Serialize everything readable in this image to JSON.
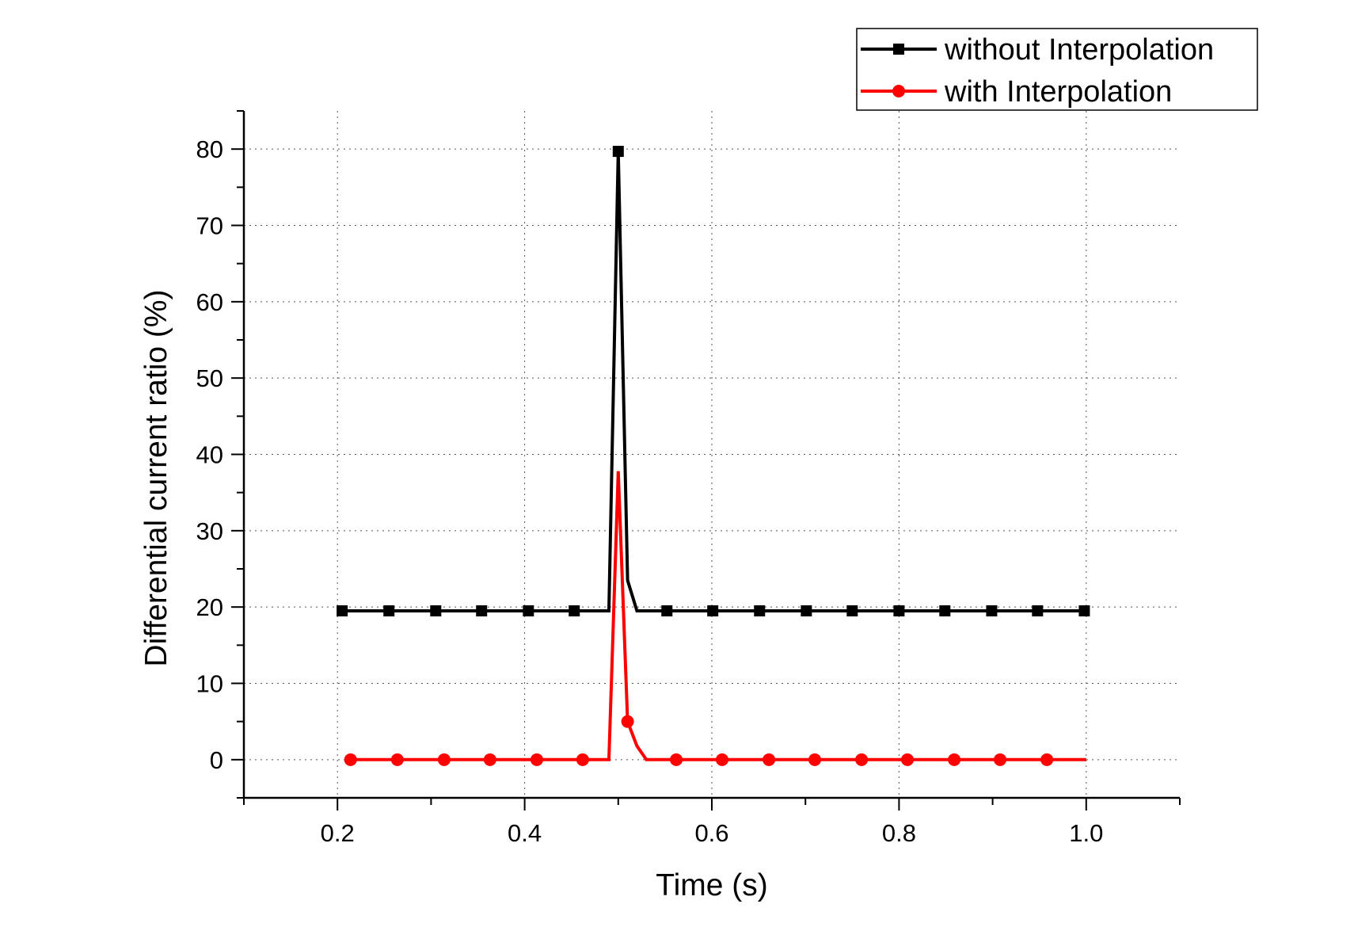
{
  "chart_data": {
    "type": "line",
    "title": "",
    "xlabel": "Time (s)",
    "ylabel": "Differential  current ratio (%)",
    "xlim": [
      0.1,
      1.1
    ],
    "ylim": [
      -5,
      85
    ],
    "x_ticks": [
      0.2,
      0.4,
      0.6,
      0.8,
      1.0
    ],
    "x_tick_labels": [
      "0.2",
      "0.4",
      "0.6",
      "0.8",
      "1.0"
    ],
    "y_ticks": [
      0,
      10,
      20,
      30,
      40,
      50,
      60,
      70,
      80
    ],
    "y_tick_labels": [
      "0",
      "10",
      "20",
      "30",
      "40",
      "50",
      "60",
      "70",
      "80"
    ],
    "grid": true,
    "legend_position": "top-right",
    "series": [
      {
        "name": "without Interpolation",
        "color": "#000000",
        "marker": "square",
        "line": [
          [
            0.205,
            19.5
          ],
          [
            0.49,
            19.5
          ],
          [
            0.5,
            79.7
          ],
          [
            0.51,
            23.5
          ],
          [
            0.52,
            19.5
          ],
          [
            1.0,
            19.5
          ]
        ],
        "markers": [
          [
            0.205,
            19.5
          ],
          [
            0.255,
            19.5
          ],
          [
            0.305,
            19.5
          ],
          [
            0.354,
            19.5
          ],
          [
            0.404,
            19.5
          ],
          [
            0.453,
            19.5
          ],
          [
            0.5,
            79.7
          ],
          [
            0.552,
            19.5
          ],
          [
            0.601,
            19.5
          ],
          [
            0.651,
            19.5
          ],
          [
            0.701,
            19.5
          ],
          [
            0.75,
            19.5
          ],
          [
            0.8,
            19.5
          ],
          [
            0.849,
            19.5
          ],
          [
            0.899,
            19.5
          ],
          [
            0.948,
            19.5
          ],
          [
            0.998,
            19.5
          ]
        ]
      },
      {
        "name": "with Interpolation",
        "color": "#ff0000",
        "marker": "circle",
        "line": [
          [
            0.214,
            0
          ],
          [
            0.49,
            0
          ],
          [
            0.5,
            37.8
          ],
          [
            0.51,
            5.0
          ],
          [
            0.52,
            1.8
          ],
          [
            0.53,
            0
          ],
          [
            1.0,
            0
          ]
        ],
        "markers": [
          [
            0.214,
            0
          ],
          [
            0.264,
            0
          ],
          [
            0.314,
            0
          ],
          [
            0.363,
            0
          ],
          [
            0.413,
            0
          ],
          [
            0.462,
            0
          ],
          [
            0.51,
            5.0
          ],
          [
            0.562,
            0
          ],
          [
            0.611,
            0
          ],
          [
            0.661,
            0
          ],
          [
            0.71,
            0
          ],
          [
            0.76,
            0
          ],
          [
            0.809,
            0
          ],
          [
            0.859,
            0
          ],
          [
            0.908,
            0
          ],
          [
            0.958,
            0
          ]
        ]
      }
    ]
  }
}
